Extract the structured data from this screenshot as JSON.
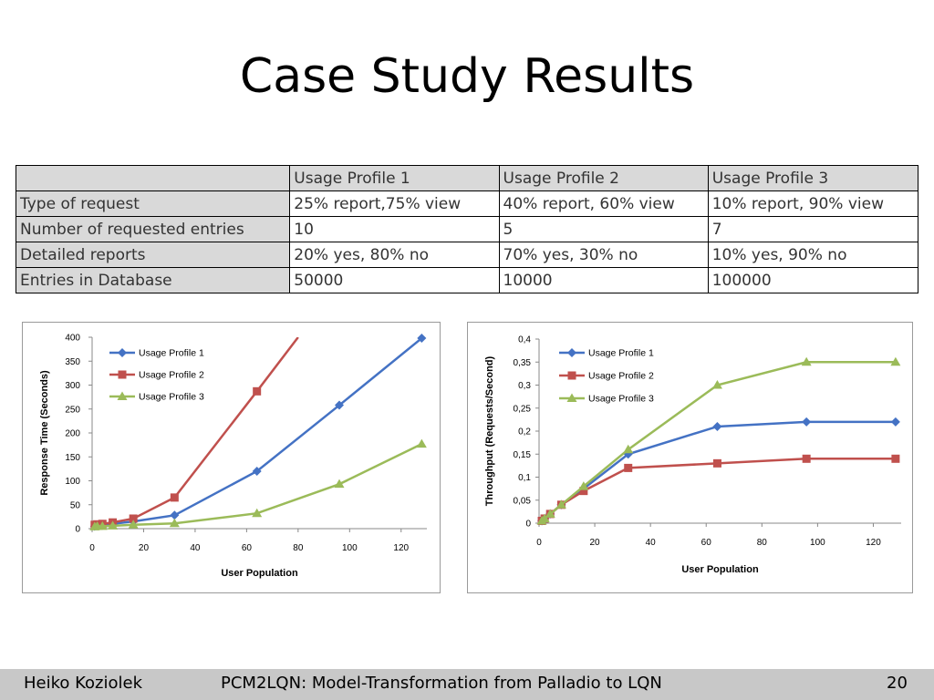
{
  "slide": {
    "title": "Case Study Results"
  },
  "table": {
    "header": [
      "",
      "Usage Profile 1",
      "Usage Profile 2",
      "Usage Profile 3"
    ],
    "rows": [
      [
        "Type of request",
        "25% report,75% view",
        "40% report, 60% view",
        "10% report, 90% view"
      ],
      [
        "Number of requested entries",
        "10",
        "5",
        "7"
      ],
      [
        "Detailed reports",
        "20% yes, 80% no",
        "70% yes, 30% no",
        "10% yes, 90% no"
      ],
      [
        "Entries in Database",
        "50000",
        "10000",
        "100000"
      ]
    ]
  },
  "colors": {
    "series1": "#4472c4",
    "series2": "#c0504d",
    "series3": "#9bbb59",
    "header_bg": "#d9d9d9",
    "footer_bg": "#c8c8c8"
  },
  "chart_data": [
    {
      "type": "line",
      "title": "",
      "xlabel": "User Population",
      "ylabel": "Response Time (Seconds)",
      "xlim": [
        0,
        130
      ],
      "ylim": [
        0,
        400
      ],
      "xticks": [
        "0",
        "20",
        "40",
        "60",
        "80",
        "100",
        "120"
      ],
      "yticks": [
        "0",
        "50",
        "100",
        "150",
        "200",
        "250",
        "300",
        "350",
        "400"
      ],
      "legend": "top-left",
      "series": [
        {
          "name": "Usage Profile 1",
          "marker": "diamond",
          "x": [
            1,
            2,
            4,
            8,
            16,
            32,
            64,
            96,
            128
          ],
          "y": [
            5,
            6,
            7,
            10,
            15,
            28,
            120,
            258,
            398
          ]
        },
        {
          "name": "Usage Profile 2",
          "marker": "square",
          "x": [
            1,
            2,
            4,
            8,
            16,
            32,
            64,
            80
          ],
          "y": [
            8,
            9,
            10,
            13,
            21,
            65,
            287,
            400
          ]
        },
        {
          "name": "Usage Profile 3",
          "marker": "triangle",
          "x": [
            1,
            2,
            4,
            8,
            16,
            32,
            64,
            96,
            128
          ],
          "y": [
            4,
            5,
            5,
            6,
            8,
            11,
            32,
            93,
            177
          ]
        }
      ]
    },
    {
      "type": "line",
      "title": "",
      "xlabel": "User Population",
      "ylabel": "Throughput (Requests/Second)",
      "xlim": [
        0,
        130
      ],
      "ylim": [
        0,
        0.4
      ],
      "xticks": [
        "0",
        "20",
        "40",
        "60",
        "80",
        "100",
        "120"
      ],
      "yticks": [
        "0",
        "0,05",
        "0,1",
        "0,15",
        "0,2",
        "0,25",
        "0,3",
        "0,35",
        "0,4"
      ],
      "legend": "top-left",
      "series": [
        {
          "name": "Usage Profile 1",
          "marker": "diamond",
          "x": [
            1,
            2,
            4,
            8,
            16,
            32,
            64,
            96,
            128
          ],
          "y": [
            0.005,
            0.01,
            0.02,
            0.04,
            0.075,
            0.15,
            0.21,
            0.22,
            0.22
          ]
        },
        {
          "name": "Usage Profile 2",
          "marker": "square",
          "x": [
            1,
            2,
            4,
            8,
            16,
            32,
            64,
            96,
            128
          ],
          "y": [
            0.005,
            0.01,
            0.02,
            0.04,
            0.07,
            0.12,
            0.13,
            0.14,
            0.14
          ]
        },
        {
          "name": "Usage Profile 3",
          "marker": "triangle",
          "x": [
            1,
            2,
            4,
            8,
            16,
            32,
            64,
            96,
            128
          ],
          "y": [
            0.005,
            0.01,
            0.02,
            0.04,
            0.08,
            0.16,
            0.3,
            0.35,
            0.35
          ]
        }
      ]
    }
  ],
  "footer": {
    "author": "Heiko Koziolek",
    "talk_title": "PCM2LQN: Model-Transformation from Palladio to LQN",
    "page_number": "20"
  }
}
